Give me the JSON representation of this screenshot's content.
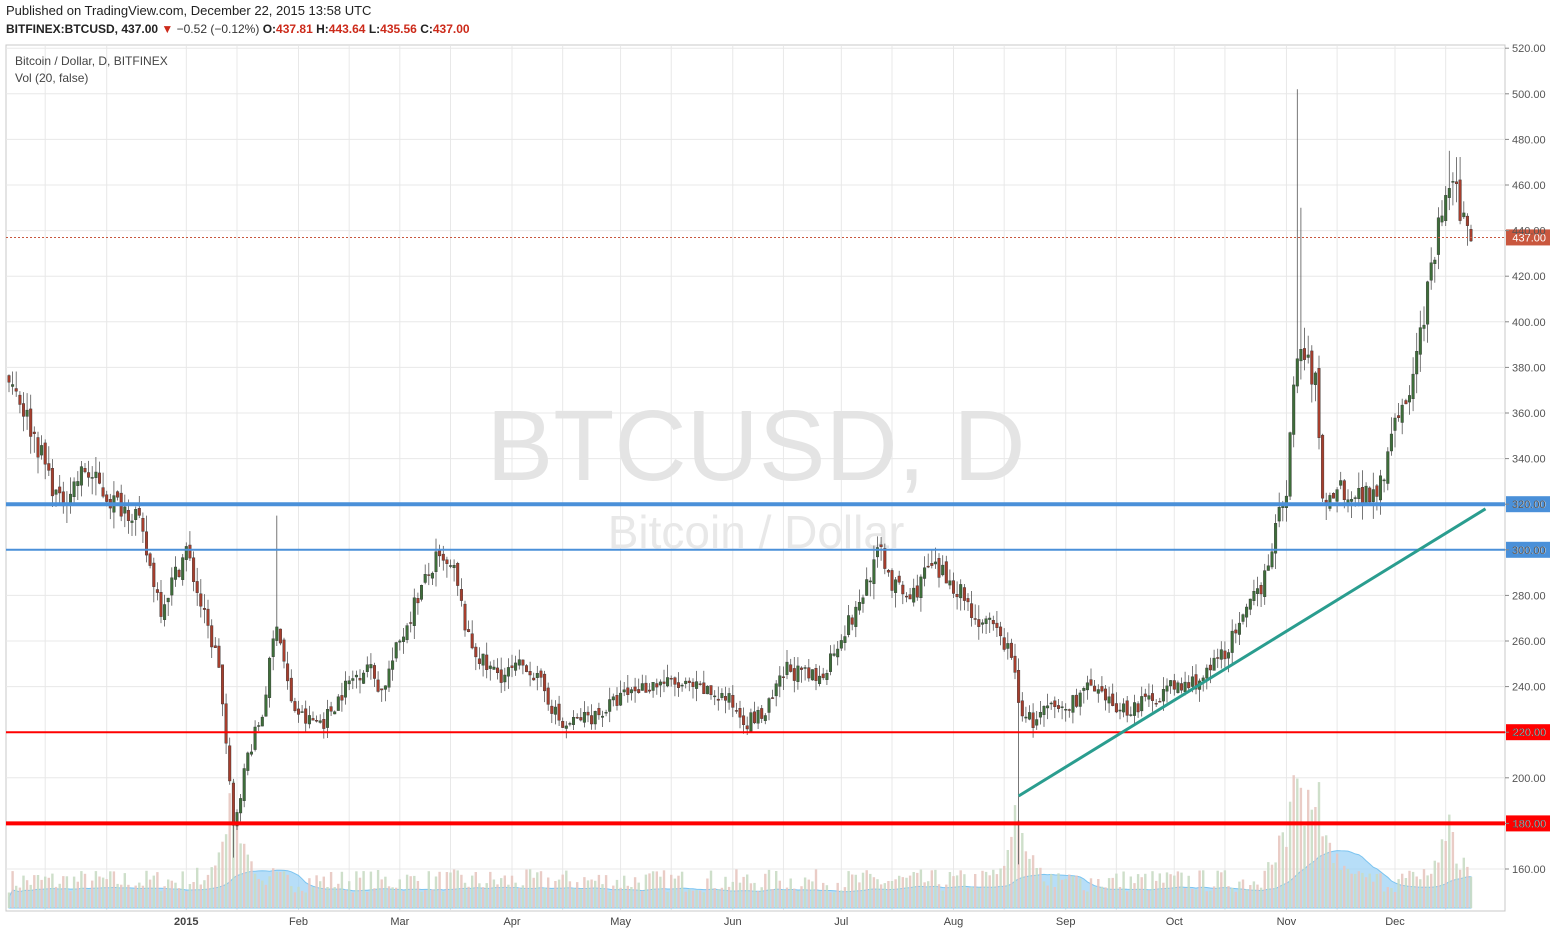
{
  "header": {
    "published": "Published on TradingView.com, December 22, 2015 13:58 UTC",
    "symbol": "BITFINEX:BTCUSD,",
    "close_value": "437.00",
    "change": "−0.52 (−0.12%)",
    "o_label": "O:",
    "o_value": "437.81",
    "h_label": "H:",
    "h_value": "443.64",
    "l_label": "L:",
    "l_value": "435.56",
    "c_label": "C:",
    "c_value": "437.00"
  },
  "legend": {
    "title": "Bitcoin / Dollar, D, BITFINEX",
    "volume": "Vol (20, false)"
  },
  "watermark": {
    "line1": "BTCUSD, D",
    "line2": "Bitcoin / Dollar"
  },
  "colors": {
    "up": "#3e6e3a",
    "down": "#a63e2d",
    "support_red": "#ff0000",
    "resistance_blue": "#4a90d9",
    "trendline": "#2a9d8f",
    "volume_ma": "#9fd3f5",
    "last_price_badge": "#c9573e",
    "grid": "#e8e8e8"
  },
  "chart_data": {
    "type": "candlestick",
    "title": "Bitcoin / Dollar, D, BITFINEX",
    "ylim": [
      141,
      523
    ],
    "y_ticks": [
      "160.00",
      "180.00",
      "200.00",
      "220.00",
      "240.00",
      "260.00",
      "280.00",
      "300.00",
      "320.00",
      "340.00",
      "360.00",
      "380.00",
      "400.00",
      "420.00",
      "440.00",
      "460.00",
      "480.00",
      "500.00",
      "520.00"
    ],
    "x_labels": [
      "2015",
      "Feb",
      "Mar",
      "Apr",
      "May",
      "Jun",
      "Jul",
      "Aug",
      "Sep",
      "Oct",
      "Nov",
      "Dec"
    ],
    "last_price": "437.00",
    "horizontal_lines": [
      {
        "value": 320,
        "color": "blue",
        "label": "320.00",
        "weight": "thick"
      },
      {
        "value": 300,
        "color": "blue",
        "label": "300.00",
        "weight": "thin"
      },
      {
        "value": 220,
        "color": "red",
        "label": "220.00",
        "weight": "thin"
      },
      {
        "value": 180,
        "color": "red",
        "label": "180.00",
        "weight": "thick"
      }
    ],
    "trendline": {
      "from": {
        "date": "2015-08-19",
        "price": 192
      },
      "to": {
        "date": "2015-12-26",
        "price": 318
      }
    },
    "price_path": [
      [
        "2014-11-13",
        378
      ],
      [
        "2014-11-20",
        350
      ],
      [
        "2014-11-27",
        320
      ],
      [
        "2014-12-04",
        335
      ],
      [
        "2014-12-11",
        322
      ],
      [
        "2014-12-18",
        316
      ],
      [
        "2014-12-25",
        275
      ],
      [
        "2015-01-01",
        300
      ],
      [
        "2015-01-06",
        270
      ],
      [
        "2015-01-10",
        250
      ],
      [
        "2015-01-14",
        178
      ],
      [
        "2015-01-18",
        210
      ],
      [
        "2015-01-22",
        228
      ],
      [
        "2015-01-26",
        270
      ],
      [
        "2015-01-30",
        232
      ],
      [
        "2015-02-03",
        225
      ],
      [
        "2015-02-08",
        225
      ],
      [
        "2015-02-14",
        240
      ],
      [
        "2015-02-20",
        250
      ],
      [
        "2015-02-24",
        238
      ],
      [
        "2015-03-01",
        260
      ],
      [
        "2015-03-06",
        280
      ],
      [
        "2015-03-11",
        295
      ],
      [
        "2015-03-16",
        290
      ],
      [
        "2015-03-20",
        260
      ],
      [
        "2015-03-25",
        248
      ],
      [
        "2015-03-30",
        245
      ],
      [
        "2015-04-05",
        250
      ],
      [
        "2015-04-10",
        238
      ],
      [
        "2015-04-15",
        222
      ],
      [
        "2015-04-20",
        226
      ],
      [
        "2015-04-25",
        228
      ],
      [
        "2015-05-01",
        235
      ],
      [
        "2015-05-05",
        239
      ],
      [
        "2015-05-12",
        242
      ],
      [
        "2015-05-18",
        240
      ],
      [
        "2015-05-24",
        238
      ],
      [
        "2015-05-30",
        235
      ],
      [
        "2015-06-05",
        225
      ],
      [
        "2015-06-10",
        228
      ],
      [
        "2015-06-16",
        248
      ],
      [
        "2015-06-20",
        245
      ],
      [
        "2015-06-25",
        243
      ],
      [
        "2015-07-01",
        263
      ],
      [
        "2015-07-05",
        272
      ],
      [
        "2015-07-09",
        290
      ],
      [
        "2015-07-12",
        300
      ],
      [
        "2015-07-15",
        285
      ],
      [
        "2015-07-20",
        278
      ],
      [
        "2015-07-25",
        292
      ],
      [
        "2015-07-30",
        288
      ],
      [
        "2015-08-03",
        282
      ],
      [
        "2015-08-07",
        270
      ],
      [
        "2015-08-12",
        265
      ],
      [
        "2015-08-17",
        255
      ],
      [
        "2015-08-19",
        232
      ],
      [
        "2015-08-23",
        224
      ],
      [
        "2015-08-27",
        230
      ],
      [
        "2015-09-01",
        230
      ],
      [
        "2015-09-07",
        240
      ],
      [
        "2015-09-12",
        233
      ],
      [
        "2015-09-18",
        230
      ],
      [
        "2015-09-24",
        234
      ],
      [
        "2015-09-29",
        239
      ],
      [
        "2015-10-04",
        240
      ],
      [
        "2015-10-10",
        245
      ],
      [
        "2015-10-15",
        256
      ],
      [
        "2015-10-20",
        268
      ],
      [
        "2015-10-25",
        285
      ],
      [
        "2015-10-29",
        308
      ],
      [
        "2015-11-01",
        328
      ],
      [
        "2015-11-03",
        370
      ],
      [
        "2015-11-05",
        390
      ],
      [
        "2015-11-07",
        380
      ],
      [
        "2015-11-09",
        375
      ],
      [
        "2015-11-11",
        320
      ],
      [
        "2015-11-15",
        328
      ],
      [
        "2015-11-20",
        324
      ],
      [
        "2015-11-25",
        325
      ],
      [
        "2015-11-28",
        335
      ],
      [
        "2015-12-01",
        362
      ],
      [
        "2015-12-04",
        360
      ],
      [
        "2015-12-08",
        395
      ],
      [
        "2015-12-11",
        420
      ],
      [
        "2015-12-14",
        450
      ],
      [
        "2015-12-17",
        458
      ],
      [
        "2015-12-20",
        445
      ],
      [
        "2015-12-22",
        437
      ]
    ],
    "volume_spikes": [
      {
        "date": "2015-01-14",
        "relative": 0.62
      },
      {
        "date": "2015-08-19",
        "relative": 0.55
      },
      {
        "date": "2015-11-04",
        "relative": 1.0
      },
      {
        "date": "2015-11-10",
        "relative": 0.45
      },
      {
        "date": "2015-12-16",
        "relative": 0.42
      }
    ]
  }
}
